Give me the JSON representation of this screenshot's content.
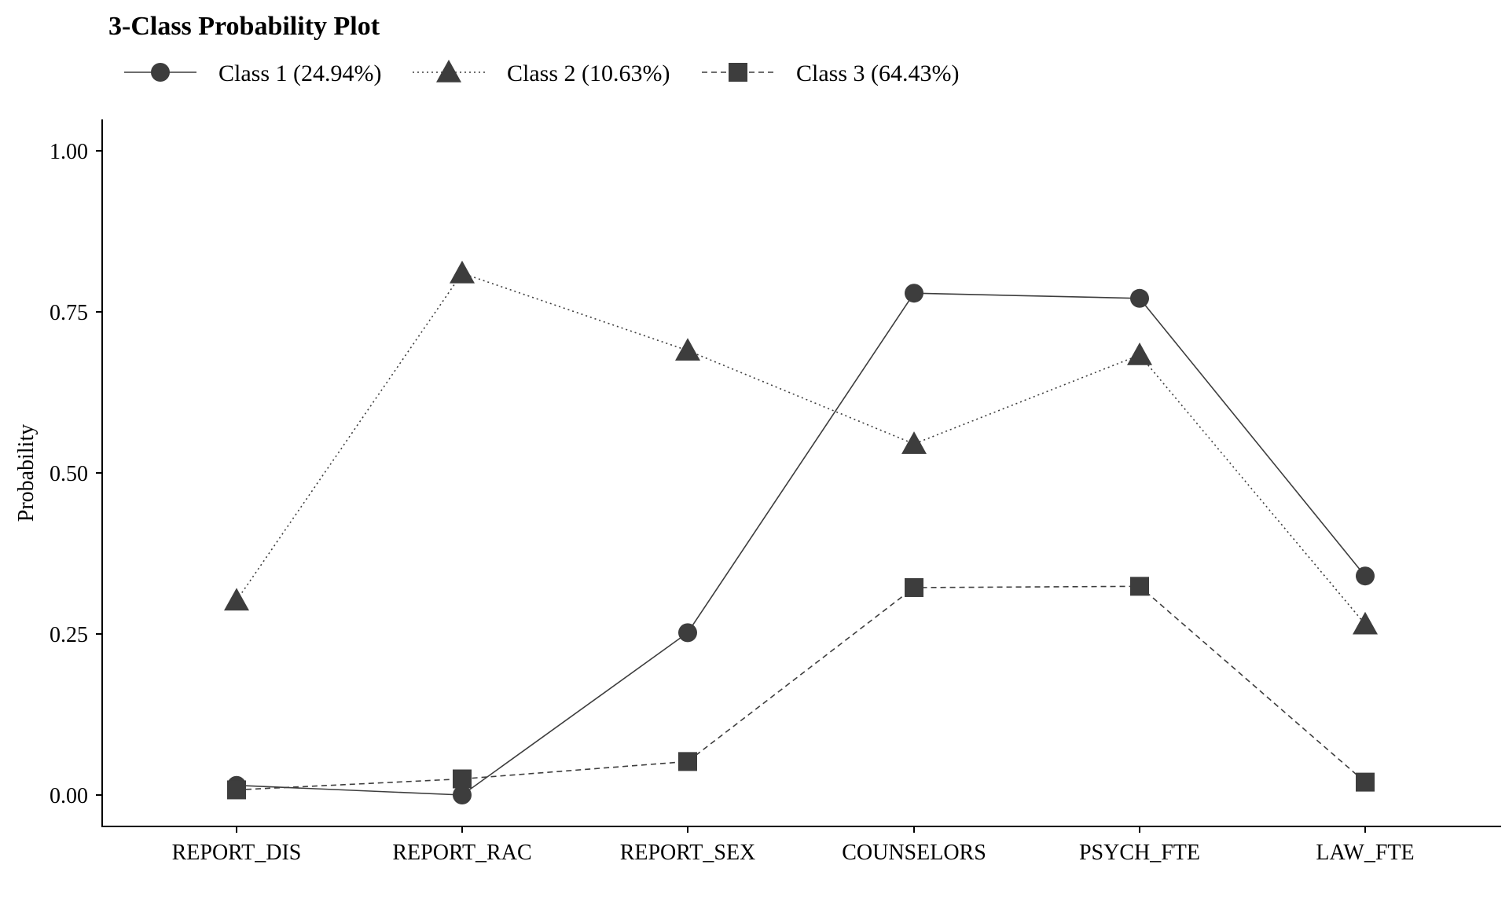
{
  "chart_data": {
    "type": "line",
    "title": "3-Class Probability Plot",
    "xlabel": "",
    "ylabel": "Probability",
    "categories": [
      "REPORT_DIS",
      "REPORT_RAC",
      "REPORT_SEX",
      "COUNSELORS",
      "PSYCH_FTE",
      "LAW_FTE"
    ],
    "ylim": [
      -0.05,
      1.05
    ],
    "yticks": [
      0.0,
      0.25,
      0.5,
      0.75,
      1.0
    ],
    "ytick_labels": [
      "0.00",
      "0.25",
      "0.50",
      "0.75",
      "1.00"
    ],
    "grid": false,
    "legend_position": "top-left",
    "series": [
      {
        "name": "Class 1 (24.94%)",
        "marker": "circle",
        "line_style": "solid",
        "values": [
          0.015,
          0.0,
          0.252,
          0.779,
          0.771,
          0.34
        ]
      },
      {
        "name": "Class 2 (10.63%)",
        "marker": "triangle",
        "line_style": "dotted",
        "values": [
          0.302,
          0.81,
          0.69,
          0.545,
          0.683,
          0.265
        ]
      },
      {
        "name": "Class 3 (64.43%)",
        "marker": "square",
        "line_style": "dashed",
        "values": [
          0.008,
          0.025,
          0.052,
          0.322,
          0.324,
          0.02
        ]
      }
    ],
    "colors": {
      "marker_fill": "#3d3d3d",
      "line": "#3d3d3d",
      "axis": "#000000"
    }
  }
}
